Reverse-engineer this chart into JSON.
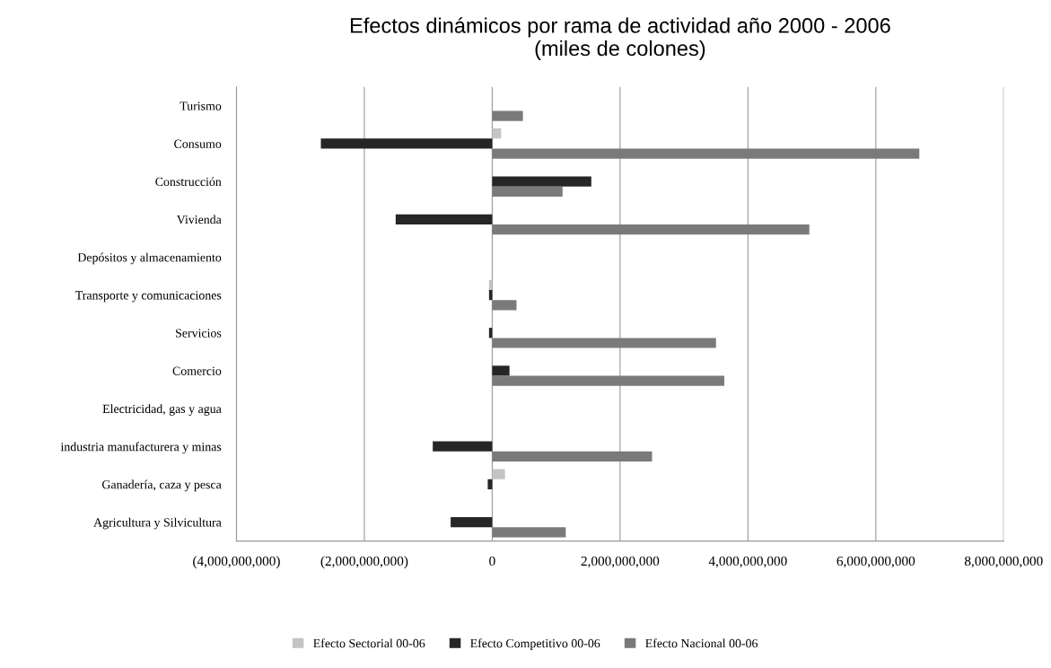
{
  "chart_data": {
    "type": "bar",
    "orientation": "horizontal",
    "title": "Efectos dinámicos por rama de actividad año 2000 - 2006\n(miles de colones)",
    "categories": [
      "Turismo",
      "Consumo",
      "Construcción",
      "Vivienda",
      "Depósitos y almacenamiento",
      "Transporte y comunicaciones",
      "Servicios",
      "Comercio",
      "Electricidad, gas y agua",
      "industria manufacturera y minas",
      "Ganadería, caza y pesca",
      "Agricultura y Silvicultura"
    ],
    "series": [
      {
        "name": "Efecto Sectorial 00-06",
        "color": "#c4c4c4",
        "values": [
          0,
          140000000,
          0,
          0,
          0,
          -50000000,
          0,
          0,
          0,
          0,
          200000000,
          0
        ]
      },
      {
        "name": "Efecto Competitivo 00-06",
        "color": "#262626",
        "values": [
          0,
          -2680000000,
          1550000000,
          -1510000000,
          0,
          -50000000,
          -50000000,
          270000000,
          0,
          -930000000,
          -70000000,
          -650000000
        ]
      },
      {
        "name": "Efecto Nacional 00-06",
        "color": "#7a7a7a",
        "values": [
          480000000,
          6680000000,
          1100000000,
          4960000000,
          0,
          380000000,
          3500000000,
          3630000000,
          0,
          2500000000,
          0,
          1150000000
        ]
      }
    ],
    "xlim": [
      -4000000000,
      8000000000
    ],
    "xticks": [
      {
        "value": -4000000000,
        "label": "(4,000,000,000)"
      },
      {
        "value": -2000000000,
        "label": "(2,000,000,000)"
      },
      0,
      {
        "value": 2000000000,
        "label": "2,000,000,000"
      },
      {
        "value": 4000000000,
        "label": "4,000,000,000"
      },
      {
        "value": 6000000000,
        "label": "6,000,000,000"
      },
      {
        "value": 8000000000,
        "label": "8,000,000,000"
      }
    ],
    "grid": "x",
    "legend": "bottom"
  }
}
